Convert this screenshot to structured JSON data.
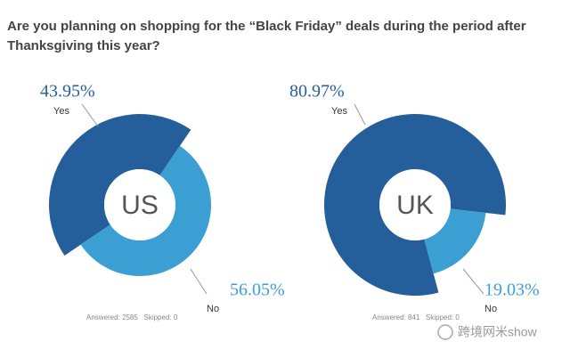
{
  "title": "Are you planning on shopping for the “Black Friday” deals during the period after Thanksgiving this year?",
  "title_lines": [
    "Are you planning on shopping for the “Black Friday” deals during the period after",
    "Thanksgiving this year?"
  ],
  "watermark": "跨境网米show",
  "chart_data": [
    {
      "type": "pie",
      "center_label": "US",
      "categories": [
        "Yes",
        "No"
      ],
      "values": [
        43.95,
        56.05
      ],
      "value_labels": [
        "43.95%",
        "56.05%"
      ],
      "colors": [
        "#255f9b",
        "#3c9fd3"
      ],
      "footnote": "Answered: 2585   Skipped: 0"
    },
    {
      "type": "pie",
      "center_label": "UK",
      "categories": [
        "Yes",
        "No"
      ],
      "values": [
        80.97,
        19.03
      ],
      "value_labels": [
        "80.97%",
        "19.03%"
      ],
      "colors": [
        "#255f9b",
        "#3c9fd3"
      ],
      "footnote": "Answered: 841   Skipped: 0"
    }
  ]
}
